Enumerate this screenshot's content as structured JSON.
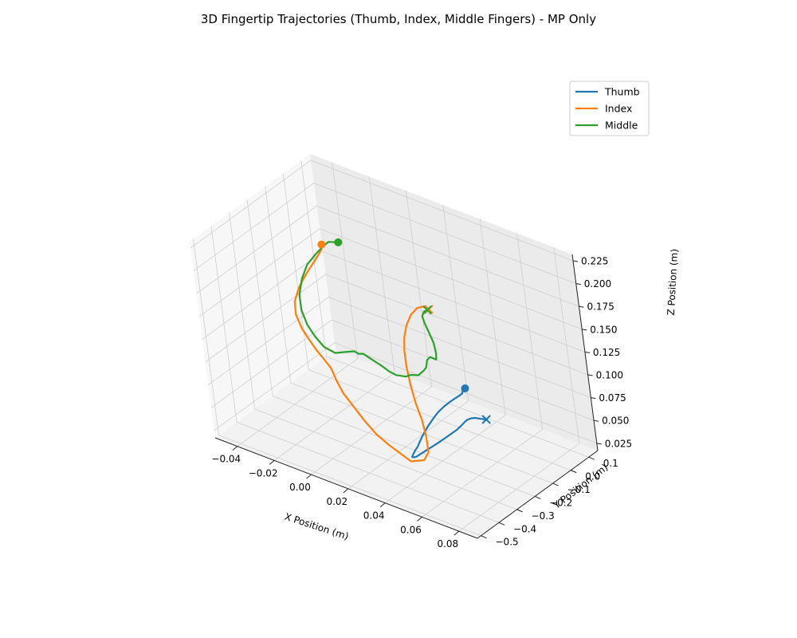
{
  "chart_data": {
    "type": "line",
    "projection": "3d",
    "title": "3D Fingertip Trajectories (Thumb, Index, Middle Fingers) - MP Only",
    "xlabel": "X Position (m)",
    "ylabel": "Y Position (m)",
    "zlabel": "Z Position (m)",
    "xlim": [
      -0.052,
      0.09
    ],
    "ylim": [
      -0.52,
      0.15
    ],
    "zlim": [
      0.017,
      0.232
    ],
    "x_ticks": [
      -0.04,
      -0.02,
      0.0,
      0.02,
      0.04,
      0.06,
      0.08
    ],
    "x_tick_labels": [
      "−0.04",
      "−0.02",
      "0.00",
      "0.02",
      "0.04",
      "0.06",
      "0.08"
    ],
    "y_ticks": [
      -0.5,
      -0.4,
      -0.3,
      -0.2,
      -0.1,
      0.0,
      0.1
    ],
    "y_tick_labels": [
      "−0.5",
      "−0.4",
      "−0.3",
      "−0.2",
      "−0.1",
      "0.0",
      "0.1"
    ],
    "z_ticks": [
      0.025,
      0.05,
      0.075,
      0.1,
      0.125,
      0.15,
      0.175,
      0.2,
      0.225
    ],
    "z_tick_labels": [
      "0.025",
      "0.050",
      "0.075",
      "0.100",
      "0.125",
      "0.150",
      "0.175",
      "0.200",
      "0.225"
    ],
    "grid": true,
    "legend_position": "upper-right",
    "start_marker": "circle",
    "end_marker": "x",
    "series": [
      {
        "name": "Thumb",
        "color": "#1f77b4",
        "x": [
          0.0343,
          0.0348,
          0.0355,
          0.0358,
          0.0358,
          0.0356,
          0.0355,
          0.0357,
          0.0363,
          0.0377,
          0.0393,
          0.0409,
          0.0428,
          0.0444,
          0.0458,
          0.0469,
          0.0482,
          0.049,
          0.0497,
          0.0503,
          0.0505,
          0.0507,
          0.051,
          0.0513,
          0.0514,
          0.0515,
          0.0516,
          0.0511,
          0.0506,
          0.0504,
          0.0509,
          0.0522,
          0.0547,
          0.057
        ],
        "y": [
          0.0133,
          -0.005,
          -0.0152,
          -0.0178,
          -0.0355,
          -0.0628,
          -0.0874,
          -0.1195,
          -0.1574,
          -0.1983,
          -0.2406,
          -0.2764,
          -0.315,
          -0.3436,
          -0.3682,
          -0.395,
          -0.4196,
          -0.4318,
          -0.4297,
          -0.4224,
          -0.4025,
          -0.3719,
          -0.3421,
          -0.3105,
          -0.2757,
          -0.2432,
          -0.2096,
          -0.1797,
          -0.1565,
          -0.1412,
          -0.1258,
          -0.1154,
          -0.109,
          -0.1017
        ],
        "z": [
          0.0616,
          0.0616,
          0.0616,
          0.0616,
          0.0616,
          0.0616,
          0.0616,
          0.0616,
          0.0616,
          0.0616,
          0.0616,
          0.0616,
          0.0616,
          0.0616,
          0.0616,
          0.0616,
          0.0616,
          0.0616,
          0.0616,
          0.0616,
          0.0616,
          0.0616,
          0.0616,
          0.0616,
          0.0616,
          0.0616,
          0.0616,
          0.0616,
          0.0616,
          0.0616,
          0.0616,
          0.0616,
          0.0616,
          0.0616
        ]
      },
      {
        "name": "Index",
        "color": "#ff7f0e",
        "x": [
          -0.0364,
          -0.0373,
          -0.0397,
          -0.0434,
          -0.0473,
          -0.0517,
          -0.0543,
          -0.0536,
          -0.05,
          -0.0446,
          -0.0389,
          -0.0325,
          -0.0264,
          -0.0213,
          -0.0159,
          -0.0083,
          0.0009,
          0.0101,
          0.018,
          0.024,
          0.0328,
          0.0386,
          0.0394,
          0.0347,
          0.0289,
          0.0226,
          0.0165,
          0.0116,
          0.008,
          0.0057,
          0.0045,
          0.0053,
          0.0069,
          0.0087,
          0.0108
        ],
        "y": [
          0.0094,
          0.0141,
          0.0152,
          0.0131,
          0.0097,
          0.0034,
          -0.0048,
          -0.0135,
          -0.0244,
          -0.0414,
          -0.0637,
          -0.0895,
          -0.1134,
          -0.1392,
          -0.1617,
          -0.1881,
          -0.2224,
          -0.2519,
          -0.2721,
          -0.286,
          -0.296,
          -0.2801,
          -0.2603,
          -0.2199,
          -0.1787,
          -0.1429,
          -0.1032,
          -0.0681,
          -0.0356,
          -0.0072,
          0.0232,
          0.0453,
          0.0677,
          0.0817,
          0.0903
        ],
        "z": [
          0.165,
          0.1585,
          0.15,
          0.1377,
          0.1244,
          0.1073,
          0.0908,
          0.0782,
          0.0671,
          0.0609,
          0.0578,
          0.0568,
          0.0549,
          0.049,
          0.0426,
          0.0385,
          0.0345,
          0.0306,
          0.0291,
          0.0287,
          0.0248,
          0.0284,
          0.0348,
          0.0425,
          0.0507,
          0.0586,
          0.0689,
          0.0802,
          0.0899,
          0.0979,
          0.1064,
          0.1152,
          0.1207,
          0.1215,
          0.1189
        ]
      },
      {
        "name": "Middle",
        "color": "#2ca02c",
        "x": [
          -0.0267,
          -0.0322,
          -0.0361,
          -0.04,
          -0.0449,
          -0.0482,
          -0.0498,
          -0.0486,
          -0.0449,
          -0.0397,
          -0.0336,
          -0.0269,
          -0.0219,
          -0.0173,
          -0.0156,
          -0.0133,
          -0.01,
          -0.0067,
          -0.004,
          -0.0003,
          0.0033,
          0.008,
          0.0113,
          0.0146,
          0.0167,
          0.0169,
          0.0165,
          0.0162,
          0.0167,
          0.0156,
          0.0138,
          0.0111,
          0.0087,
          0.0077,
          0.0087,
          0.0101
        ],
        "y": [
          0.009,
          0.0081,
          0.0052,
          0.0027,
          -0.0017,
          -0.0082,
          -0.0164,
          -0.0271,
          -0.0404,
          -0.0551,
          -0.0702,
          -0.0769,
          -0.0754,
          -0.0642,
          -0.0606,
          -0.0571,
          -0.056,
          -0.0539,
          -0.0518,
          -0.052,
          -0.0514,
          -0.0457,
          -0.0465,
          -0.0395,
          -0.0275,
          -0.015,
          -0.0024,
          0.0178,
          0.043,
          0.0559,
          0.0667,
          0.0733,
          0.0791,
          0.0804,
          0.0841,
          0.0891
        ],
        "z": [
          0.175,
          0.1713,
          0.1622,
          0.1521,
          0.1379,
          0.1206,
          0.1034,
          0.089,
          0.0777,
          0.0709,
          0.0663,
          0.0659,
          0.0705,
          0.0733,
          0.0713,
          0.0727,
          0.0705,
          0.0678,
          0.0656,
          0.0626,
          0.0614,
          0.0626,
          0.0671,
          0.0683,
          0.0734,
          0.0752,
          0.0811,
          0.0813,
          0.0752,
          0.079,
          0.0875,
          0.0965,
          0.1036,
          0.1105,
          0.1159,
          0.1179
        ]
      }
    ]
  }
}
